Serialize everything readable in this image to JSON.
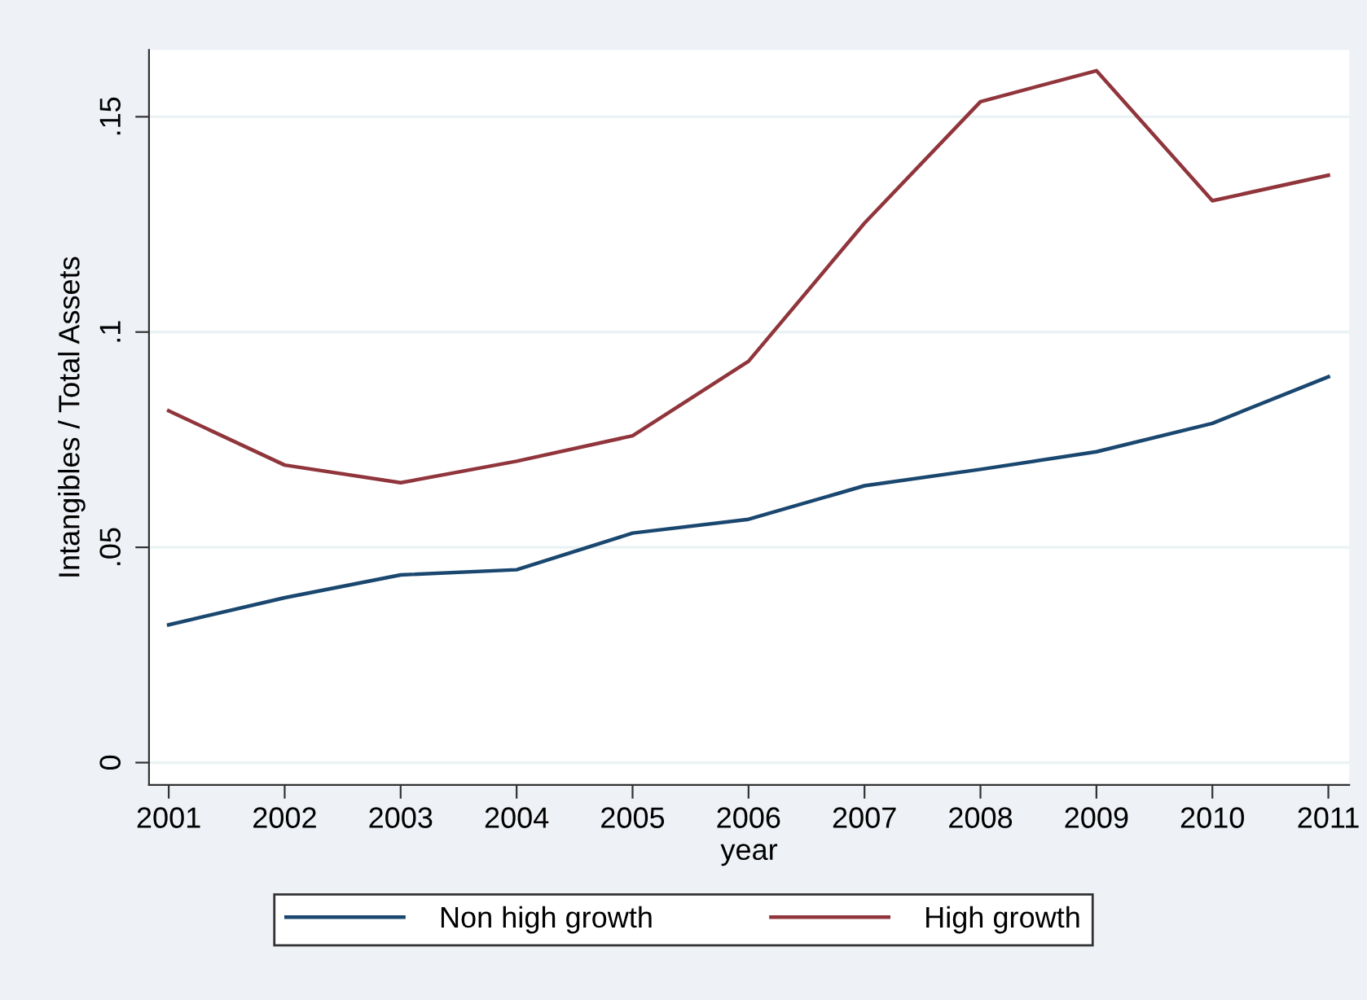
{
  "chart_data": {
    "type": "line",
    "xlabel": "year",
    "ylabel": "Intangibles / Total Assets",
    "x": [
      2001,
      2002,
      2003,
      2004,
      2005,
      2006,
      2007,
      2008,
      2009,
      2010,
      2011
    ],
    "series": [
      {
        "name": "Non high growth",
        "color": "#1a476f",
        "values": [
          0.032,
          0.0383,
          0.0436,
          0.0448,
          0.0533,
          0.0565,
          0.0643,
          0.0681,
          0.0722,
          0.0788,
          0.0896
        ]
      },
      {
        "name": "High growth",
        "color": "#90353b",
        "values": [
          0.0817,
          0.0691,
          0.065,
          0.07,
          0.0759,
          0.0932,
          0.1253,
          0.1535,
          0.1607,
          0.1305,
          0.1364
        ]
      }
    ],
    "xlim": [
      2000.83,
      2011.18
    ],
    "ylim": [
      -0.0052,
      0.1655
    ],
    "xticks": [
      2001,
      2002,
      2003,
      2004,
      2005,
      2006,
      2007,
      2008,
      2009,
      2010,
      2011
    ],
    "yticks": [
      {
        "value": 0,
        "label": "0"
      },
      {
        "value": 0.05,
        "label": ".05"
      },
      {
        "value": 0.1,
        "label": ".1"
      },
      {
        "value": 0.15,
        "label": ".15"
      }
    ],
    "grid": "y",
    "legend": "bottom",
    "marker": "none",
    "line_style": "solid"
  }
}
